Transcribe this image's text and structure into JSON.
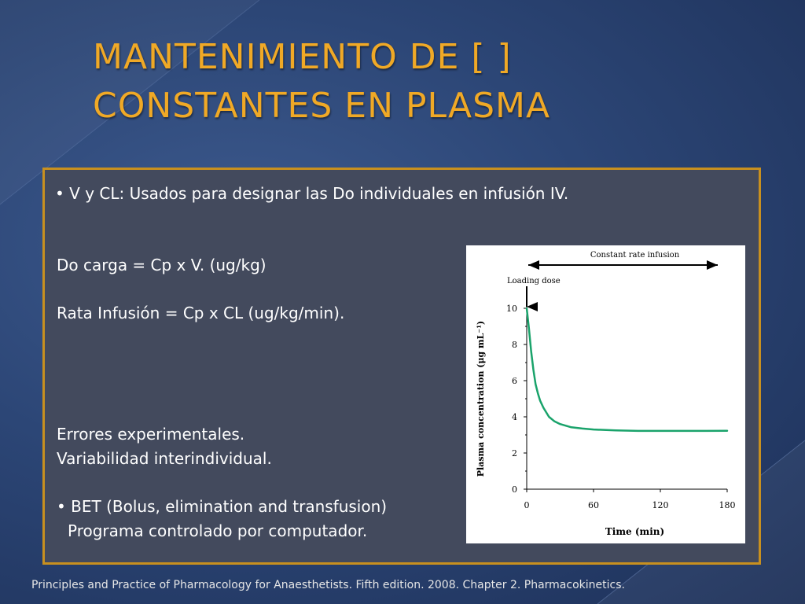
{
  "slide": {
    "title_line1": "MANTENIMIENTO DE [ ]",
    "title_line2": "CONSTANTES EN PLASMA",
    "bullet1": "• V y CL: Usados para designar las Do individuales en infusión IV.",
    "line_do_carga": "Do carga = Cp x V. (ug/kg)",
    "line_rata": "Rata Infusión = Cp x CL (ug/kg/min).",
    "line_errores": "Errores experimentales.",
    "line_variabilidad": "Variabilidad interindividual.",
    "bullet_bet": "• BET (Bolus, elimination and transfusion)",
    "line_programa": "Programa controlado por computador.",
    "footer": "Principles and Practice of Pharmacology for Anaesthetists. Fifth edition. 2008. Chapter 2. Pharmacokinetics."
  },
  "colors": {
    "title": "#f0a926",
    "box_border": "#c8901f",
    "box_fill": "#434a5d",
    "curve": "#1aa36b"
  },
  "chart_data": {
    "type": "line",
    "title": "",
    "xlabel": "Time  (min)",
    "ylabel": "Plasma concentration  (μg mL⁻¹)",
    "xlim": [
      0,
      180
    ],
    "ylim": [
      0,
      10
    ],
    "x_ticks": [
      0,
      60,
      120,
      180
    ],
    "y_ticks": [
      0,
      2,
      4,
      6,
      8,
      10
    ],
    "annotations": {
      "constant_rate_infusion": "Constant rate infusion",
      "loading_dose": "Loading dose"
    },
    "series": [
      {
        "x": [
          0,
          2,
          4,
          6,
          8,
          10,
          12,
          15,
          20,
          25,
          30,
          40,
          50,
          60,
          80,
          100,
          120,
          140,
          160,
          180
        ],
        "y": [
          10,
          8.9,
          7.6,
          6.6,
          5.8,
          5.3,
          4.9,
          4.5,
          4.0,
          3.75,
          3.6,
          3.42,
          3.35,
          3.3,
          3.25,
          3.22,
          3.22,
          3.22,
          3.22,
          3.23
        ]
      }
    ]
  }
}
